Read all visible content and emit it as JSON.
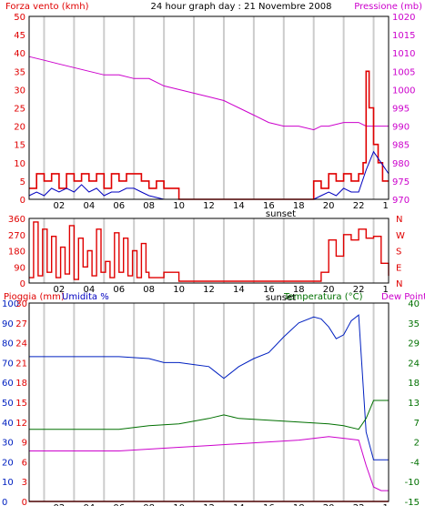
{
  "header": {
    "left_title": "Forza vento (kmh)",
    "center_title": "24 hour graph day : 21 Novembre 2008",
    "right_title": "Pressione (mb)"
  },
  "colors": {
    "frame": "#000000",
    "grid": "#cccccc",
    "wind": "#e00000",
    "gust": "#e00000",
    "wind_avg": "#0000c0",
    "wind_green": "#008000",
    "pressure": "#cc00cc",
    "direction": "#e00000",
    "rain": "#e00000",
    "humidity": "#0020c0",
    "temperature": "#007000",
    "dewpoint": "#cc00cc"
  },
  "x_axis": {
    "tick_labels": [
      "02",
      "04",
      "06",
      "08",
      "10",
      "12",
      "14",
      "16",
      "18",
      "20",
      "22",
      "1"
    ],
    "sunset_label": "sunset",
    "vertical_grid_hours": [
      1,
      3,
      5,
      7,
      9,
      11,
      13,
      15,
      17,
      19,
      21,
      23
    ]
  },
  "panel2": {
    "right_letters": [
      "N",
      "W",
      "S",
      "E",
      "N"
    ]
  },
  "panel3_header": {
    "left_a": "Pioggia (mm)",
    "left_b": "Umidita %",
    "right_a": "Temperatura (°C)",
    "right_b": "Dew Point"
  },
  "chart_data": [
    {
      "type": "line",
      "id": "wind_pressure",
      "title": "24 hour graph day : 21 Novembre 2008",
      "ylabel_left": "Forza vento (kmh)",
      "ylabel_right": "Pressione (mb)",
      "ylim_left": [
        0,
        50
      ],
      "ylim_right": [
        970,
        1020
      ],
      "y_ticks_left": [
        0,
        5,
        10,
        15,
        20,
        25,
        30,
        35,
        40,
        45,
        50
      ],
      "y_ticks_right": [
        970,
        975,
        980,
        985,
        990,
        995,
        1000,
        1005,
        1010,
        1015,
        1020
      ],
      "xlim": [
        0,
        24
      ],
      "series": [
        {
          "axis": "right",
          "x": [
            0,
            1,
            2,
            3,
            4,
            5,
            6,
            7,
            8,
            9,
            10,
            11,
            12,
            13,
            14,
            15,
            16,
            17,
            18,
            19,
            19.5,
            20,
            21,
            22,
            22.5,
            23,
            23.5,
            24
          ],
          "values": [
            1009,
            1008,
            1007,
            1006,
            1005,
            1004,
            1004,
            1003,
            1003,
            1001,
            1000,
            999,
            998,
            997,
            995,
            993,
            991,
            990,
            990,
            989,
            990,
            990,
            991,
            991,
            990,
            990,
            990,
            990
          ]
        },
        {
          "axis": "left",
          "x": [
            0,
            0.5,
            1,
            1.5,
            2,
            2.5,
            3,
            3.5,
            4,
            4.5,
            5,
            5.5,
            6,
            6.5,
            7,
            7.5,
            8,
            8.5,
            9,
            10,
            12,
            14,
            16,
            17,
            18,
            19,
            19.5,
            20,
            20.5,
            21,
            21.5,
            22,
            22.3,
            22.5,
            22.7,
            23,
            23.3,
            23.6,
            24
          ],
          "values": [
            3,
            7,
            5,
            7,
            3,
            7,
            5,
            7,
            5,
            7,
            3,
            7,
            5,
            7,
            7,
            5,
            3,
            5,
            3,
            0,
            0,
            0,
            0,
            0,
            0,
            5,
            3,
            7,
            5,
            7,
            5,
            7,
            10,
            35,
            25,
            15,
            10,
            5,
            5
          ]
        },
        {
          "axis": "left",
          "x": [
            0,
            0.5,
            1,
            1.5,
            2,
            2.5,
            3,
            3.5,
            4,
            4.5,
            5,
            5.5,
            6,
            6.5,
            7,
            7.5,
            8,
            9,
            10,
            14,
            16,
            19,
            19.5,
            20,
            20.5,
            21,
            21.5,
            22,
            22.5,
            23,
            23.5,
            24
          ],
          "values": [
            1,
            2,
            1,
            3,
            2,
            3,
            2,
            4,
            2,
            3,
            1,
            2,
            2,
            3,
            3,
            2,
            1,
            0,
            0,
            0,
            0,
            0,
            1,
            2,
            1,
            3,
            2,
            2,
            8,
            13,
            10,
            7
          ]
        }
      ]
    },
    {
      "type": "scatter",
      "id": "wind_direction",
      "ylim": [
        0,
        360
      ],
      "y_ticks": [
        0,
        90,
        180,
        270,
        360
      ],
      "xlim": [
        0,
        24
      ],
      "series": [
        {
          "x": [
            0,
            0.3,
            0.6,
            0.9,
            1.2,
            1.5,
            1.8,
            2.1,
            2.4,
            2.7,
            3,
            3.3,
            3.6,
            3.9,
            4.2,
            4.5,
            4.8,
            5.1,
            5.4,
            5.7,
            6,
            6.3,
            6.6,
            6.9,
            7.2,
            7.5,
            7.8,
            8,
            9,
            9.5,
            10,
            12,
            14,
            16,
            18,
            19,
            19.5,
            20,
            20.5,
            21,
            21.5,
            22,
            22.5,
            23,
            23.5,
            24
          ],
          "values": [
            30,
            340,
            40,
            300,
            60,
            260,
            30,
            200,
            50,
            320,
            20,
            250,
            90,
            180,
            40,
            300,
            60,
            120,
            30,
            280,
            60,
            250,
            40,
            180,
            30,
            220,
            60,
            30,
            60,
            60,
            10,
            10,
            10,
            10,
            10,
            10,
            60,
            240,
            150,
            270,
            240,
            300,
            250,
            260,
            110,
            40
          ]
        }
      ]
    },
    {
      "type": "line",
      "id": "rain_humidity_temperature",
      "ylabel_left_a": "Pioggia (mm)",
      "ylabel_left_b": "Umidita %",
      "ylabel_right_a": "Temperatura (°C)",
      "ylabel_right_b": "Dew Point",
      "ylim_humidity": [
        0,
        100
      ],
      "ylim_rain": [
        0,
        30
      ],
      "ylim_temperature": [
        -15,
        40
      ],
      "y_ticks_humidity": [
        0,
        10,
        20,
        30,
        40,
        50,
        60,
        70,
        80,
        90,
        100
      ],
      "y_ticks_rain": [
        0,
        3,
        6,
        9,
        12,
        15,
        18,
        21,
        24,
        27,
        30
      ],
      "y_ticks_temperature": [
        -15,
        -10,
        -4,
        2,
        7,
        13,
        18,
        24,
        29,
        35,
        40
      ],
      "xlim": [
        0,
        24
      ],
      "series": [
        {
          "name": "Umidita %",
          "axis": "humidity",
          "x": [
            0,
            2,
            4,
            6,
            8,
            9,
            10,
            11,
            12,
            12.5,
            13,
            13.5,
            14,
            15,
            16,
            17,
            18,
            19,
            19.5,
            20,
            20.5,
            21,
            21.5,
            22,
            22.5,
            23,
            23.5,
            24
          ],
          "values": [
            73,
            73,
            73,
            73,
            72,
            70,
            70,
            69,
            68,
            65,
            62,
            65,
            68,
            72,
            75,
            83,
            90,
            93,
            92,
            88,
            82,
            84,
            91,
            94,
            35,
            21,
            21,
            21
          ]
        },
        {
          "name": "Temperatura (°C)",
          "axis": "temperature",
          "x": [
            0,
            2,
            4,
            6,
            8,
            10,
            12,
            13,
            14,
            16,
            18,
            20,
            21,
            22,
            22.5,
            23,
            23.5,
            24
          ],
          "values": [
            5,
            5,
            5,
            5,
            6,
            6.5,
            8,
            9,
            8,
            7.5,
            7,
            6.5,
            6,
            5,
            8,
            13,
            13,
            13
          ]
        },
        {
          "name": "Dew Point",
          "axis": "temperature",
          "x": [
            0,
            2,
            4,
            6,
            8,
            10,
            12,
            14,
            16,
            18,
            20,
            21,
            22,
            22.5,
            23,
            23.5,
            24
          ],
          "values": [
            -1,
            -1,
            -1,
            -1,
            -0.5,
            0,
            0.5,
            1,
            1.5,
            2,
            3,
            2.5,
            2,
            -5,
            -11,
            -12,
            -12
          ]
        },
        {
          "name": "Pioggia (mm)",
          "axis": "rain",
          "x": [
            0,
            24
          ],
          "values": [
            0,
            0
          ]
        }
      ]
    }
  ]
}
